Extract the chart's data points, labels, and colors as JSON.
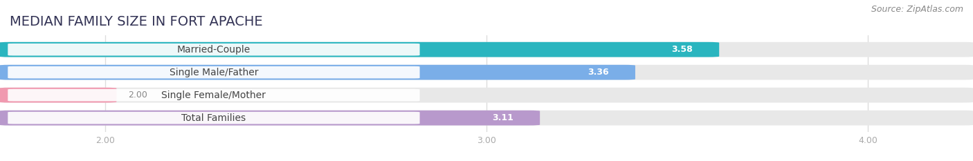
{
  "title": "MEDIAN FAMILY SIZE IN FORT APACHE",
  "source": "Source: ZipAtlas.com",
  "categories": [
    "Married-Couple",
    "Single Male/Father",
    "Single Female/Mother",
    "Total Families"
  ],
  "values": [
    3.58,
    3.36,
    2.0,
    3.11
  ],
  "bar_colors": [
    "#2ab5bf",
    "#7aaee8",
    "#f09ab0",
    "#b899cc"
  ],
  "xlim": [
    1.75,
    4.25
  ],
  "data_min": 2.0,
  "xticks": [
    2.0,
    3.0,
    4.0
  ],
  "xtick_labels": [
    "2.00",
    "3.00",
    "4.00"
  ],
  "background_color": "#ffffff",
  "bar_background": "#e8e8e8",
  "title_fontsize": 14,
  "source_fontsize": 9,
  "label_fontsize": 10,
  "value_fontsize": 9,
  "tick_fontsize": 9,
  "bar_height": 0.6,
  "figsize": [
    14.06,
    2.33
  ],
  "dpi": 100,
  "title_color": "#333355",
  "source_color": "#888888",
  "tick_color": "#aaaaaa",
  "grid_color": "#dddddd",
  "label_text_color": "#444444",
  "value_text_color_inside": "#ffffff",
  "value_text_color_outside": "#888888"
}
